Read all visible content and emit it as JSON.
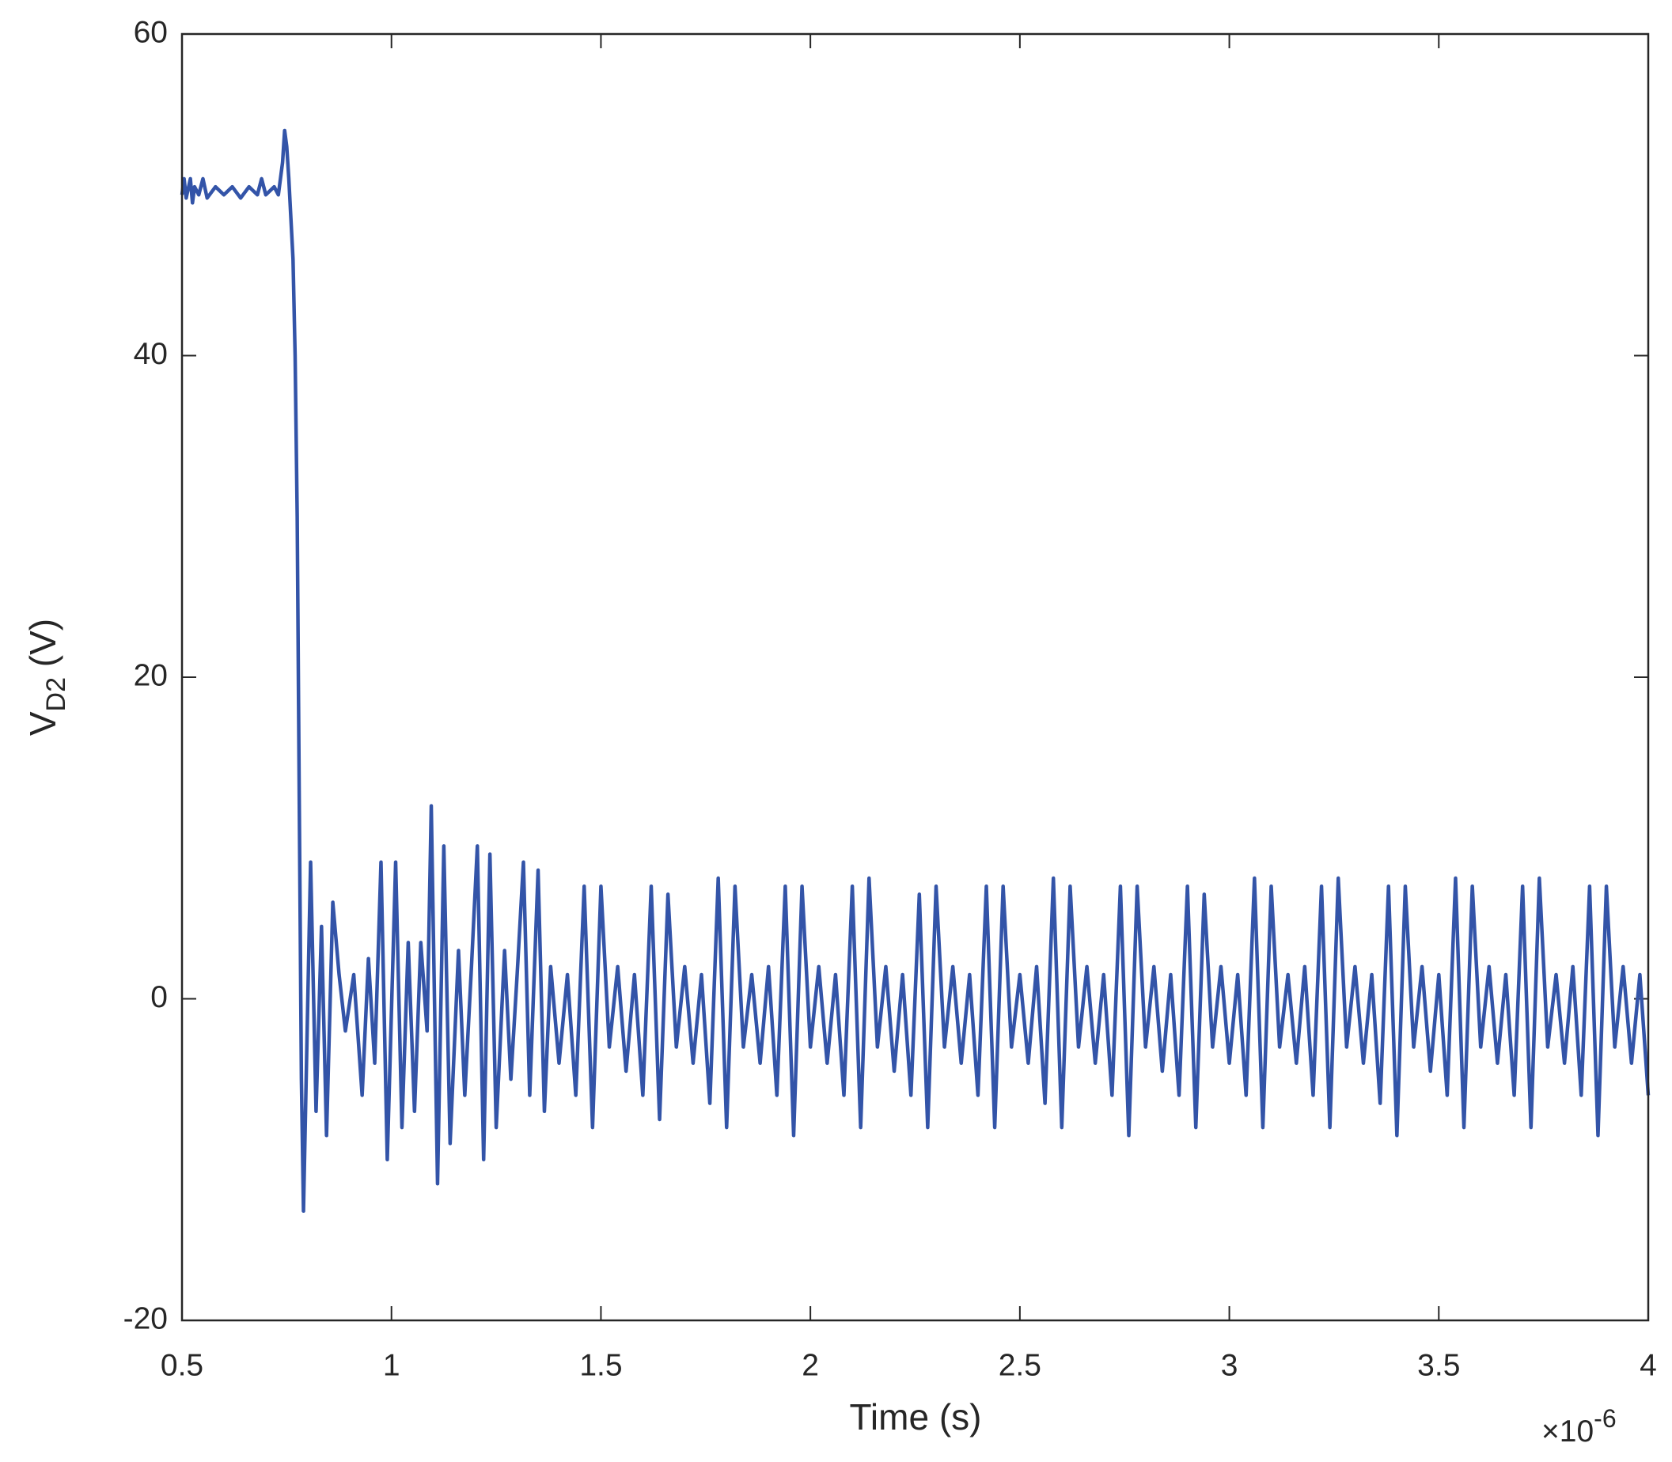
{
  "chart_data": {
    "type": "line",
    "xlabel": "Time (s)",
    "ylabel": {
      "main": "V",
      "sub": "D2",
      "unit": "(V)"
    },
    "x_multiplier": {
      "base": "×10",
      "exponent": "-6"
    },
    "xlim": [
      0.5,
      4
    ],
    "ylim": [
      -20,
      60
    ],
    "xticks": [
      0.5,
      1,
      1.5,
      2,
      2.5,
      3,
      3.5,
      4
    ],
    "yticks": [
      -20,
      0,
      20,
      40,
      60
    ],
    "grid": false,
    "series": [
      {
        "color": "#3354a8",
        "x": [
          0.5,
          0.505,
          0.51,
          0.52,
          0.525,
          0.53,
          0.54,
          0.55,
          0.56,
          0.58,
          0.6,
          0.62,
          0.64,
          0.66,
          0.68,
          0.69,
          0.7,
          0.72,
          0.73,
          0.74,
          0.745,
          0.75,
          0.755,
          0.765,
          0.77,
          0.775,
          0.78,
          0.785,
          0.79,
          0.807,
          0.82,
          0.833,
          0.845,
          0.86,
          0.875,
          0.89,
          0.91,
          0.93,
          0.945,
          0.96,
          0.975,
          0.99,
          1.01,
          1.025,
          1.04,
          1.055,
          1.07,
          1.085,
          1.095,
          1.11,
          1.125,
          1.14,
          1.16,
          1.175,
          1.19,
          1.205,
          1.22,
          1.235,
          1.25,
          1.27,
          1.285,
          1.3,
          1.315,
          1.33,
          1.35,
          1.365,
          1.38,
          1.4,
          1.42,
          1.44,
          1.46,
          1.48,
          1.5,
          1.52,
          1.54,
          1.56,
          1.58,
          1.6,
          1.62,
          1.64,
          1.66,
          1.68,
          1.7,
          1.72,
          1.74,
          1.76,
          1.78,
          1.8,
          1.82,
          1.84,
          1.86,
          1.88,
          1.9,
          1.92,
          1.94,
          1.96,
          1.98,
          2,
          2.02,
          2.04,
          2.06,
          2.08,
          2.1,
          2.12,
          2.14,
          2.16,
          2.18,
          2.2,
          2.22,
          2.24,
          2.26,
          2.28,
          2.3,
          2.32,
          2.34,
          2.36,
          2.38,
          2.4,
          2.42,
          2.44,
          2.46,
          2.48,
          2.5,
          2.52,
          2.54,
          2.56,
          2.58,
          2.6,
          2.62,
          2.64,
          2.66,
          2.68,
          2.7,
          2.72,
          2.74,
          2.76,
          2.78,
          2.8,
          2.82,
          2.84,
          2.86,
          2.88,
          2.9,
          2.92,
          2.94,
          2.96,
          2.98,
          3,
          3.02,
          3.04,
          3.06,
          3.08,
          3.1,
          3.12,
          3.14,
          3.16,
          3.18,
          3.2,
          3.22,
          3.24,
          3.26,
          3.28,
          3.3,
          3.32,
          3.34,
          3.36,
          3.38,
          3.4,
          3.42,
          3.44,
          3.46,
          3.48,
          3.5,
          3.52,
          3.54,
          3.56,
          3.58,
          3.6,
          3.62,
          3.64,
          3.66,
          3.68,
          3.7,
          3.72,
          3.74,
          3.76,
          3.78,
          3.8,
          3.82,
          3.84,
          3.86,
          3.88,
          3.9,
          3.92,
          3.94,
          3.96,
          3.98,
          4
        ],
        "values": [
          50,
          51,
          49.8,
          51,
          49.5,
          50.5,
          50,
          51,
          49.8,
          50.5,
          50,
          50.5,
          49.8,
          50.5,
          50,
          51,
          50,
          50.5,
          50,
          52,
          54,
          53,
          51,
          46,
          40,
          30,
          12,
          -5,
          -13.2,
          8.5,
          -7,
          4.5,
          -8.5,
          6,
          1.5,
          -2,
          1.5,
          -6,
          2.5,
          -4,
          8.5,
          -10,
          8.5,
          -8,
          3.5,
          -7,
          3.5,
          -2,
          12,
          -11.5,
          9.5,
          -9,
          3,
          -6,
          1.5,
          9.5,
          -10,
          9,
          -8,
          3,
          -5,
          1.5,
          8.5,
          -6,
          8,
          -7,
          2,
          -4,
          1.5,
          -6,
          7,
          -8,
          7,
          -3,
          2,
          -4.5,
          1.5,
          -6,
          7,
          -7.5,
          6.5,
          -3,
          2,
          -4,
          1.5,
          -6.5,
          7.5,
          -8,
          7,
          -3,
          1.5,
          -4,
          2,
          -6,
          7,
          -8.5,
          7,
          -3,
          2,
          -4,
          1.5,
          -6,
          7,
          -8,
          7.5,
          -3,
          2,
          -4.5,
          1.5,
          -6,
          6.5,
          -8,
          7,
          -3,
          2,
          -4,
          1.5,
          -6,
          7,
          -8,
          7,
          -3,
          1.5,
          -4,
          2,
          -6.5,
          7.5,
          -8,
          7,
          -3,
          2,
          -4,
          1.5,
          -6,
          7,
          -8.5,
          7,
          -3,
          2,
          -4.5,
          1.5,
          -6,
          7,
          -8,
          6.5,
          -3,
          2,
          -4,
          1.5,
          -6,
          7.5,
          -8,
          7,
          -3,
          1.5,
          -4,
          2,
          -6,
          7,
          -8,
          7.5,
          -3,
          2,
          -4,
          1.5,
          -6.5,
          7,
          -8.5,
          7,
          -3,
          2,
          -4.5,
          1.5,
          -6,
          7.5,
          -8,
          7,
          -3,
          2,
          -4,
          1.5,
          -6,
          7,
          -8,
          7.5,
          -3,
          1.5,
          -4,
          2,
          -6,
          7,
          -8.5,
          7,
          -3,
          2,
          -4,
          1.5,
          -6
        ]
      }
    ]
  }
}
